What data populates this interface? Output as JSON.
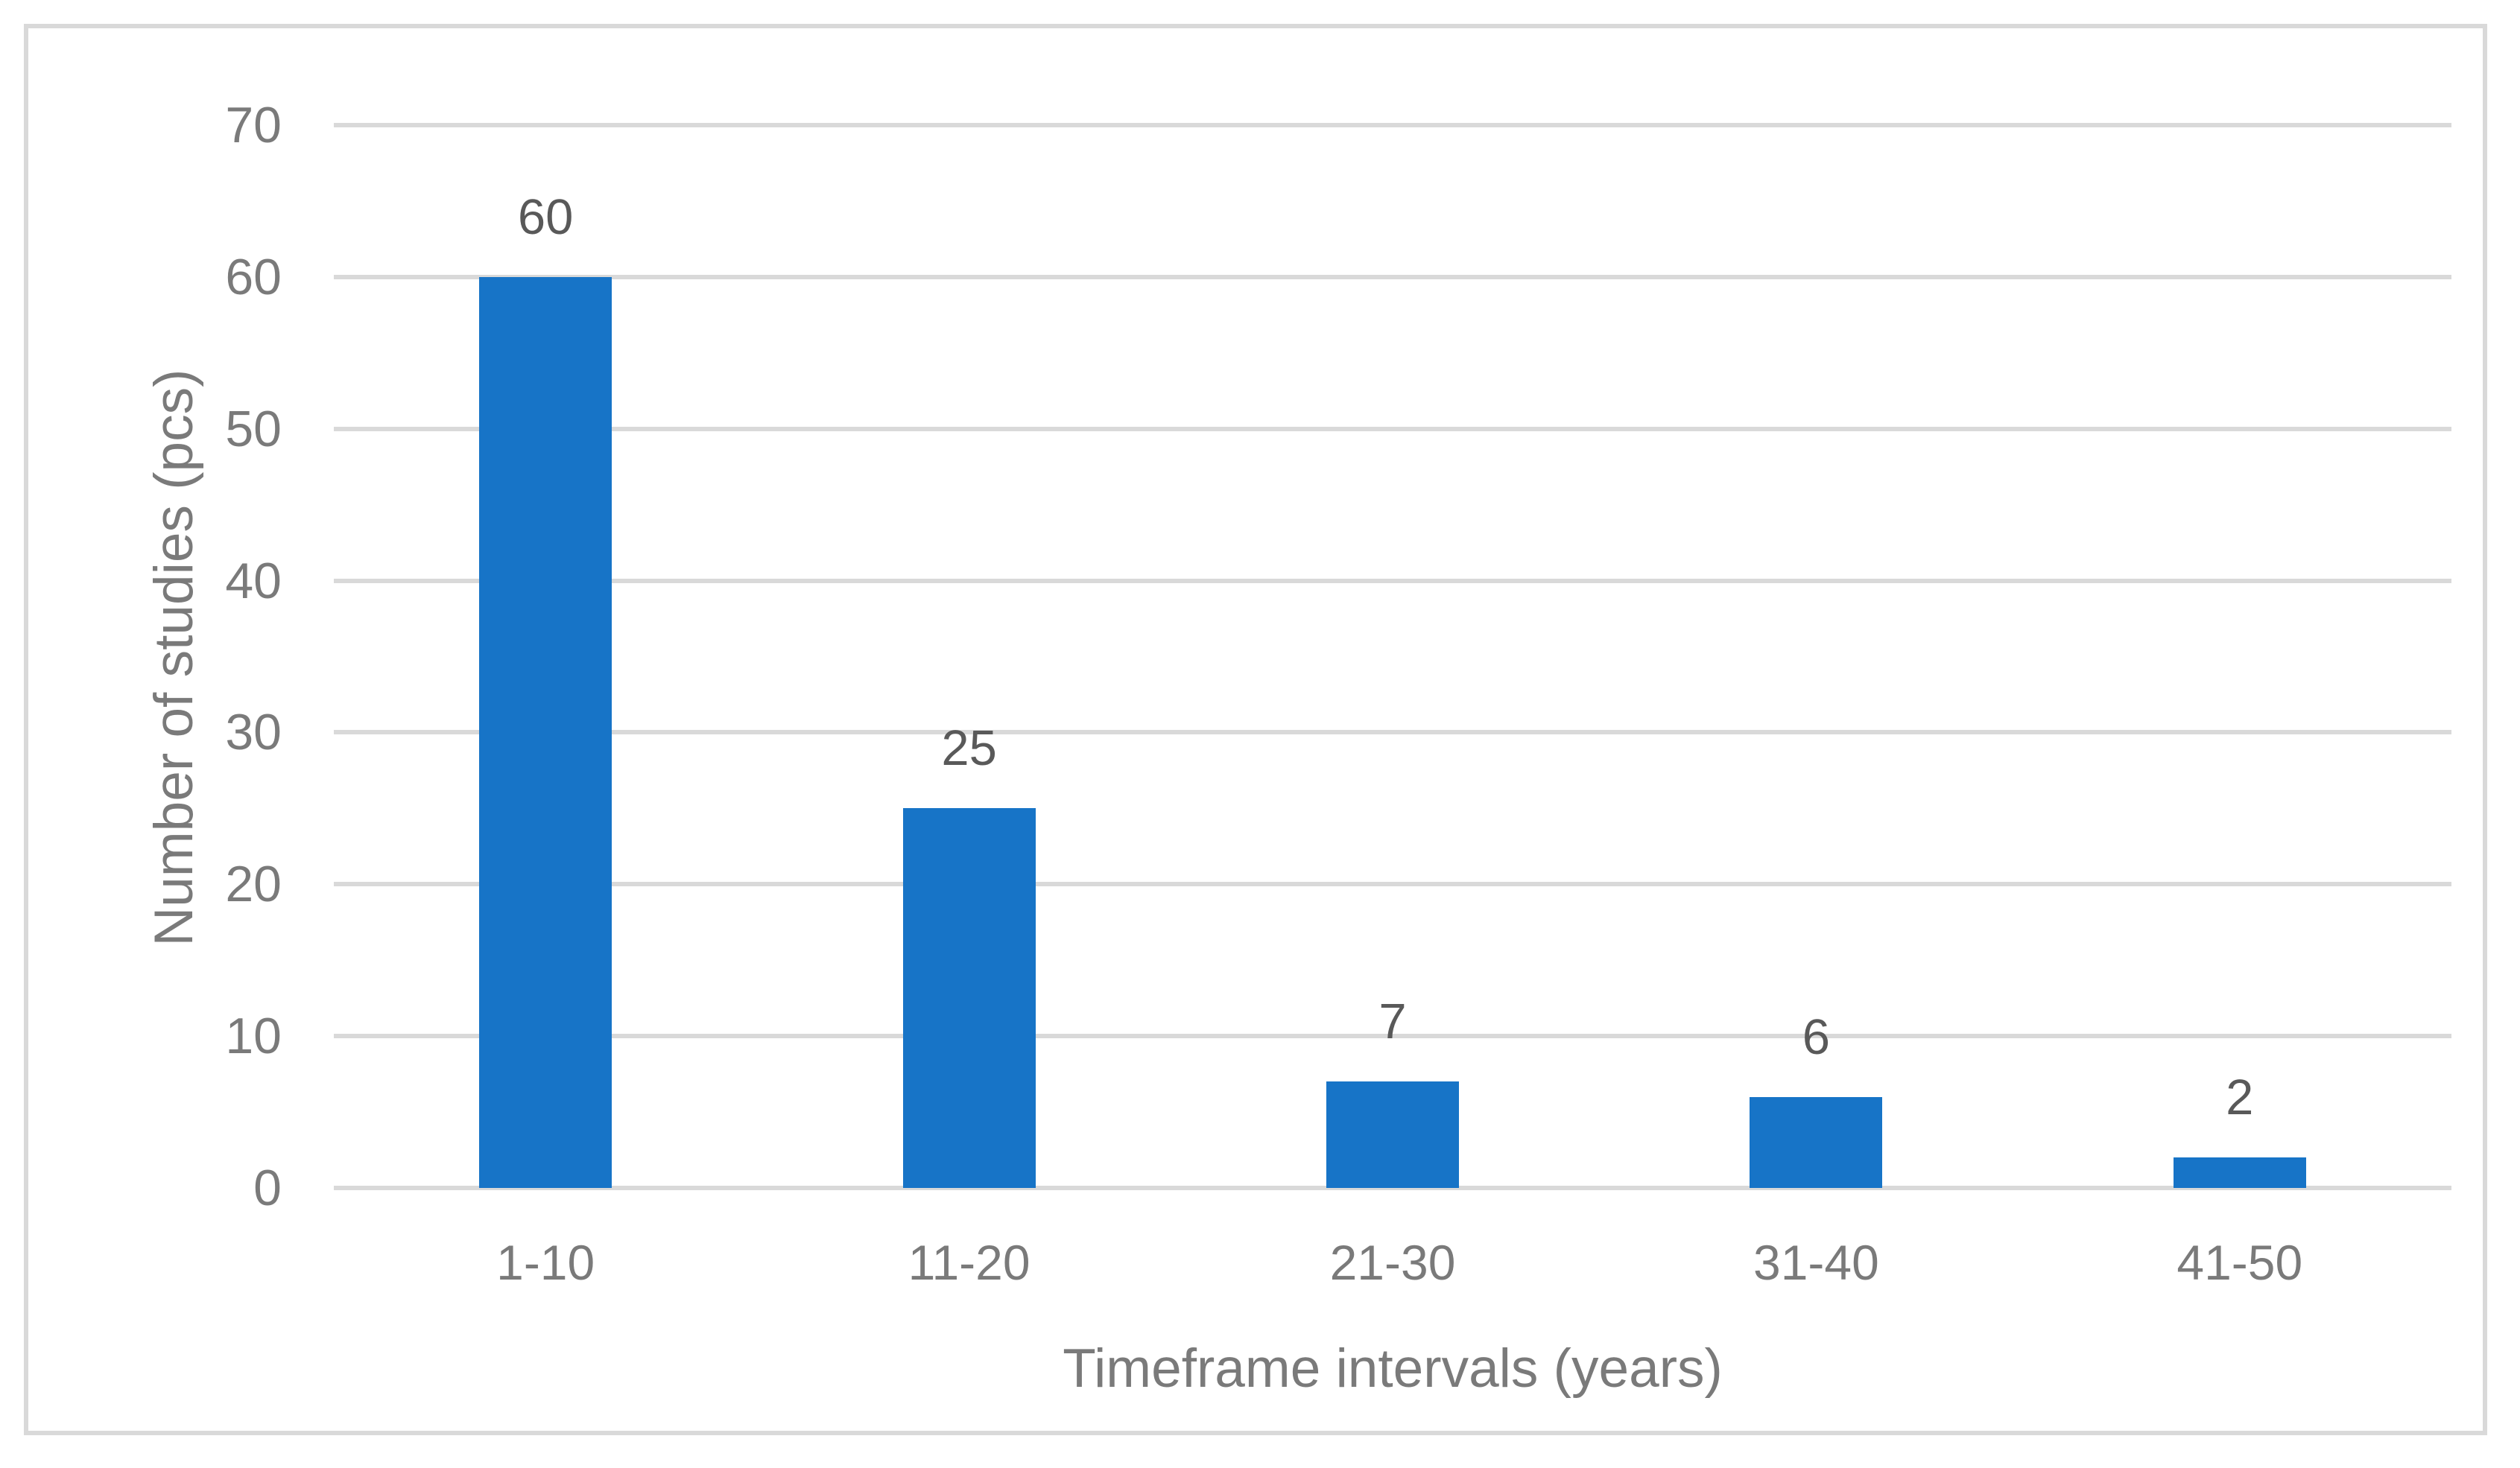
{
  "chart_data": {
    "type": "bar",
    "categories": [
      "1-10",
      "11-20",
      "21-30",
      "31-40",
      "41-50"
    ],
    "values": [
      60,
      25,
      7,
      6,
      2
    ],
    "data_labels": [
      "60",
      "25",
      "7",
      "6",
      "2"
    ],
    "title": "",
    "xlabel": "Timeframe intervals (years)",
    "ylabel": "Number of studies (pcs)",
    "ylim": [
      0,
      70
    ],
    "yticks": [
      0,
      10,
      20,
      30,
      40,
      50,
      60,
      70
    ],
    "grid": "horizontal-only",
    "legend": "none",
    "bar_label_position": "outside-end"
  },
  "colors": {
    "bar": "#1774C7",
    "gridline": "#D9D9D9",
    "frame_border": "#D9D9D9",
    "axis_tick_label": "#7A7A7A",
    "axis_title": "#7A7A7A",
    "data_label": "#595959",
    "background": "#FFFFFF"
  }
}
